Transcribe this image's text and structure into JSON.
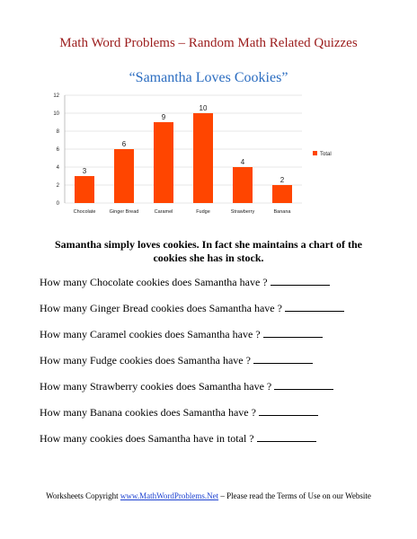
{
  "header": {
    "title": "Math Word Problems – Random Math Related Quizzes",
    "subtitle": "“Samantha Loves Cookies”"
  },
  "chart_data": {
    "type": "bar",
    "categories": [
      "Chocolate",
      "Ginger Bread",
      "Caramel",
      "Fudge",
      "Strawberry",
      "Banana"
    ],
    "series": [
      {
        "name": "Total",
        "values": [
          3,
          6,
          9,
          10,
          4,
          2
        ]
      }
    ],
    "yticks": [
      "0",
      "2",
      "4",
      "6",
      "8",
      "10",
      "12"
    ],
    "ylim": [
      0,
      12
    ],
    "grid": true,
    "legend": "right",
    "color": "#ff4500"
  },
  "intro": "Samantha simply loves cookies. In fact she maintains a chart of the cookies she has in stock.",
  "questions": [
    "How many Chocolate cookies does Samantha have ?",
    "How many Ginger Bread cookies does Samantha have ?",
    "How many Caramel cookies does Samantha have ?",
    "How many Fudge cookies does Samantha have ?",
    "How many Strawberry cookies does Samantha have ?",
    "How many Banana cookies does Samantha have ?",
    "How many cookies does Samantha have in total ?"
  ],
  "footer": {
    "prefix": "Worksheets Copyright",
    "link": "www.MathWordProblems.Net",
    "suffix": "– Please read the Terms of Use on our Website"
  }
}
